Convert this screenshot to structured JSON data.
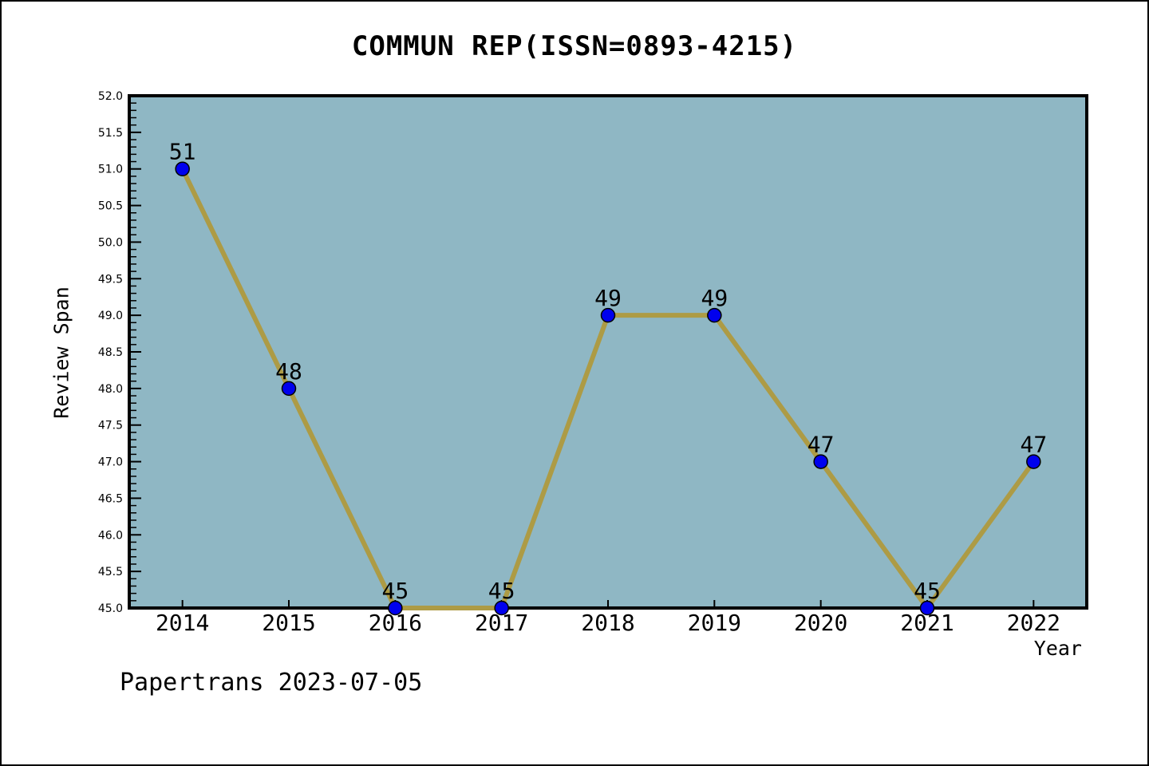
{
  "title": "COMMUN REP(ISSN=0893-4215)",
  "watermark": "Papertrans 2023-07-05",
  "chart_data": {
    "type": "line",
    "title": "COMMUN REP(ISSN=0893-4215)",
    "xlabel": "Year",
    "ylabel": "Review Span",
    "x": [
      2014,
      2015,
      2016,
      2017,
      2018,
      2019,
      2020,
      2021,
      2022
    ],
    "values": [
      51,
      48,
      45,
      45,
      49,
      49,
      47,
      45,
      47
    ],
    "point_labels": [
      "51",
      "48",
      "45",
      "45",
      "49",
      "49",
      "47",
      "45",
      "47"
    ],
    "x_tick_labels": [
      "2014",
      "2015",
      "2016",
      "2017",
      "2018",
      "2019",
      "2020",
      "2021",
      "2022"
    ],
    "y_tick_labels": [
      "45.0",
      "45.5",
      "46.0",
      "46.5",
      "47.0",
      "47.5",
      "48.0",
      "48.5",
      "49.0",
      "49.5",
      "50.0",
      "50.5",
      "51.0",
      "51.5",
      "52.0"
    ],
    "xlim": [
      2013.5,
      2022.5
    ],
    "ylim": [
      45.0,
      52.0
    ],
    "y_major_tick_step": 0.5,
    "y_minor_tick_step": 0.1,
    "grid": false,
    "legend": "none",
    "colors": {
      "line": "#AD9B45",
      "marker": "#0000EE",
      "marker_edge": "#000000",
      "plot_background": "#8FB7C4",
      "figure_background": "#FFFFFF",
      "axis": "#000000",
      "text": "#000000"
    }
  }
}
